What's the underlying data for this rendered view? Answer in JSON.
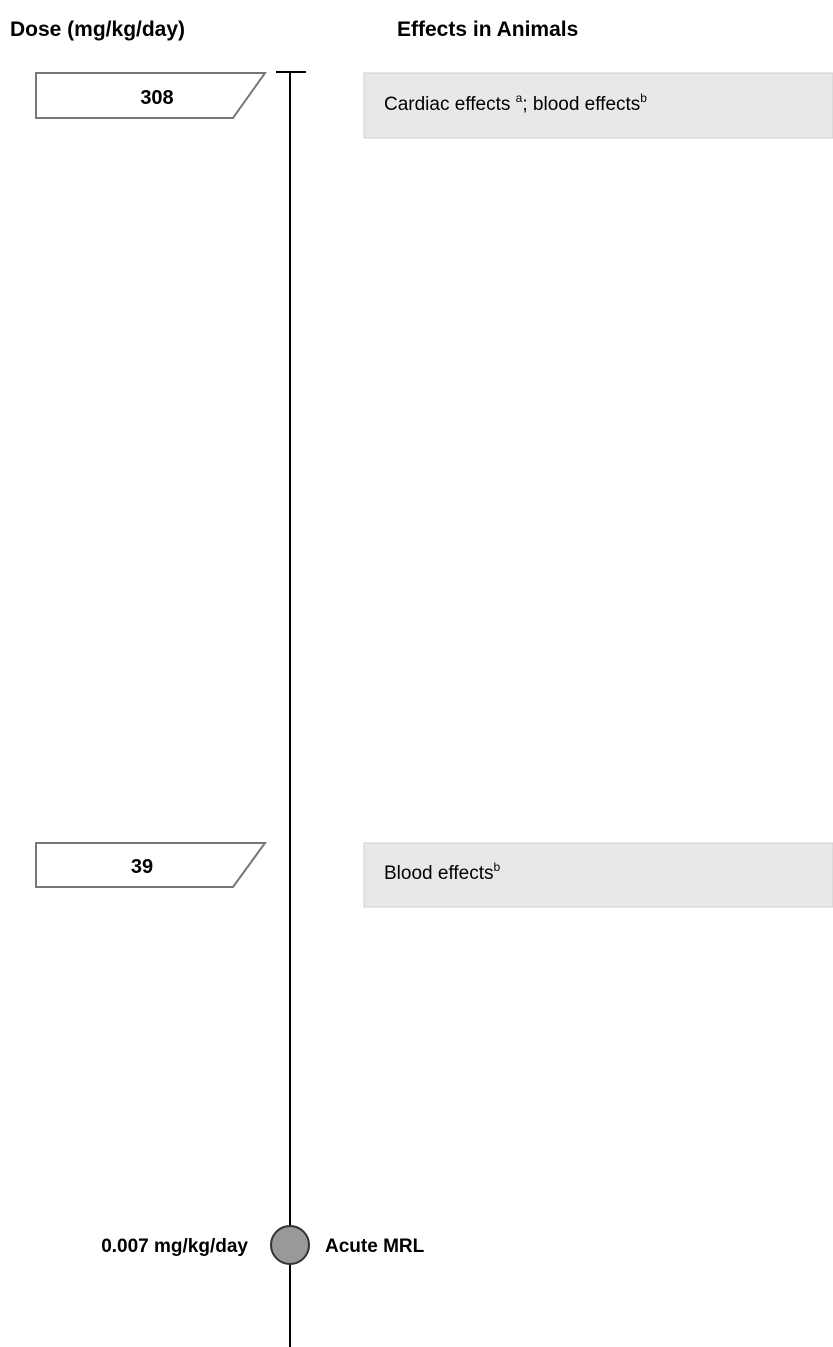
{
  "header": {
    "dose_title": "Dose (mg/kg/day)",
    "effects_title": "Effects in Animals"
  },
  "levels": [
    {
      "dose": 308,
      "effect": [
        {
          "text": "Cardiac effects "
        },
        {
          "sup": "a"
        },
        {
          "text": "; blood effects"
        },
        {
          "sup": "b"
        }
      ]
    },
    {
      "dose": 39,
      "effect": [
        {
          "text": "Blood effects"
        },
        {
          "sup": "b"
        }
      ]
    }
  ],
  "mrl": {
    "dose": "0.007 mg/kg/day",
    "label": "Acute MRL"
  }
}
